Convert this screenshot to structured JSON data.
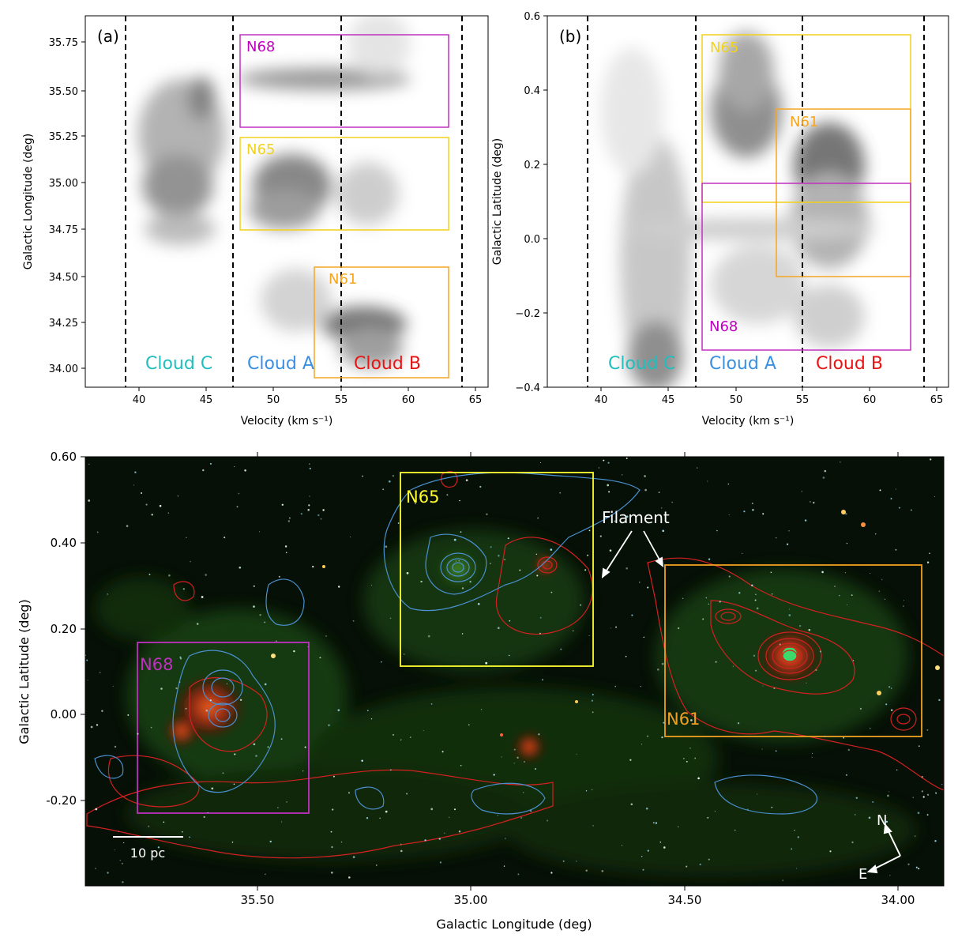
{
  "colors": {
    "n68": "#c000c0",
    "n65": "#f2d21a",
    "n61": "#f5a623",
    "cloud_c": "#1fbfbf",
    "cloud_a": "#3a8fe0",
    "cloud_b": "#e81414",
    "contour_red": "#d42020",
    "contour_blue": "#4a90d0",
    "box_yellow": "#ffff30",
    "box_orange": "#f0a020",
    "box_magenta": "#c030c0"
  },
  "panel_a": {
    "label": "(a)",
    "xlabel": "Velocity (km s⁻¹)",
    "ylabel": "Galactic Longitude (deg)",
    "xticks": [
      "40",
      "45",
      "50",
      "55",
      "60",
      "65"
    ],
    "yticks": [
      "35.75",
      "35.50",
      "35.25",
      "35.00",
      "34.75",
      "34.50",
      "34.25",
      "34.00"
    ],
    "boxes": [
      {
        "name": "N68",
        "key": "n68"
      },
      {
        "name": "N65",
        "key": "n65"
      },
      {
        "name": "N61",
        "key": "n61"
      }
    ],
    "clouds": [
      {
        "name": "Cloud C",
        "key": "cloud_c"
      },
      {
        "name": "Cloud A",
        "key": "cloud_a"
      },
      {
        "name": "Cloud B",
        "key": "cloud_b"
      }
    ]
  },
  "panel_b": {
    "label": "(b)",
    "xlabel": "Velocity (km s⁻¹)",
    "ylabel": "Galactic Latitude (deg)",
    "xticks": [
      "40",
      "45",
      "50",
      "55",
      "60",
      "65"
    ],
    "yticks": [
      "0.6",
      "0.4",
      "0.2",
      "0.0",
      "−0.2",
      "−0.4"
    ],
    "boxes": [
      {
        "name": "N65",
        "key": "n65"
      },
      {
        "name": "N61",
        "key": "n61"
      },
      {
        "name": "N68",
        "key": "n68"
      }
    ],
    "clouds": [
      {
        "name": "Cloud C",
        "key": "cloud_c"
      },
      {
        "name": "Cloud A",
        "key": "cloud_a"
      },
      {
        "name": "Cloud B",
        "key": "cloud_b"
      }
    ]
  },
  "panel_c": {
    "xlabel": "Galactic Longitude (deg)",
    "ylabel": "Galactic Latitude (deg)",
    "xticks": [
      "35.50",
      "35.00",
      "34.50",
      "34.00"
    ],
    "yticks": [
      "0.60",
      "0.40",
      "0.20",
      "0.00",
      "-0.20"
    ],
    "regions": {
      "n68": "N68",
      "n65": "N65",
      "n61": "N61"
    },
    "filament": "Filament",
    "scalebar": "10 pc",
    "compass_n": "N",
    "compass_e": "E"
  }
}
